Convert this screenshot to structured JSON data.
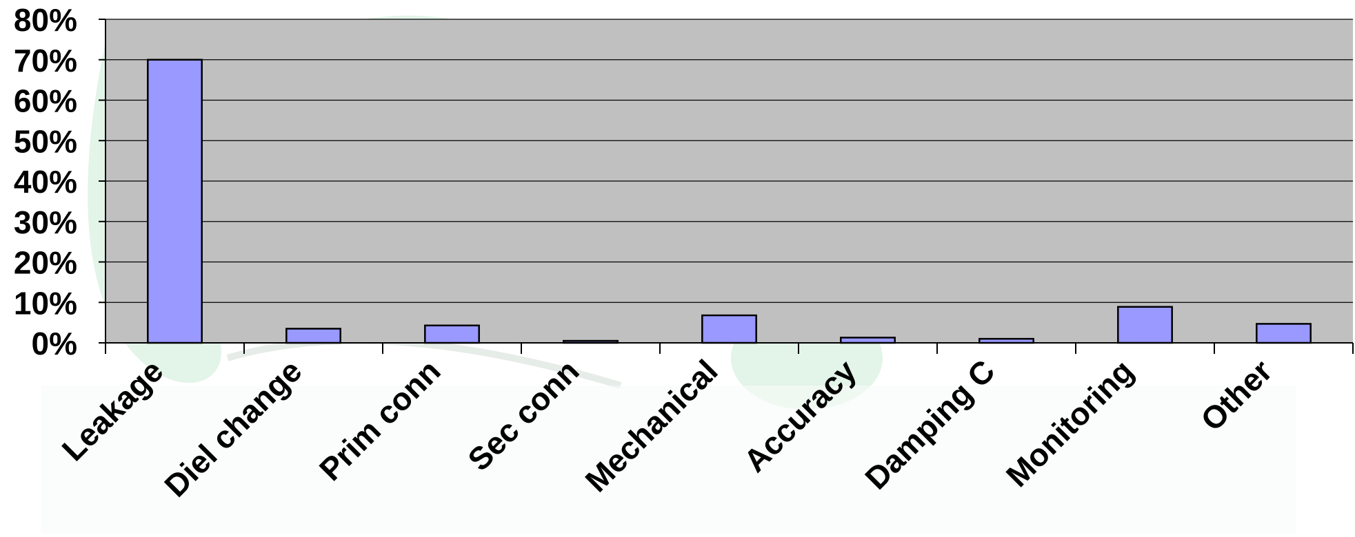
{
  "chart_data": {
    "type": "bar",
    "title": "",
    "xlabel": "",
    "ylabel": "",
    "categories": [
      "Leakage",
      "Diel change",
      "Prim conn",
      "Sec conn",
      "Mechanical",
      "Accuracy",
      "Damping C",
      "Monitoring",
      "Other"
    ],
    "values": [
      70,
      3.5,
      4.3,
      0.5,
      6.8,
      1.3,
      1.0,
      8.9,
      4.7
    ],
    "value_unit": "%",
    "ylim": [
      0,
      80
    ],
    "yticks": [
      "0%",
      "10%",
      "20%",
      "30%",
      "40%",
      "50%",
      "60%",
      "70%",
      "80%"
    ],
    "grid": true,
    "legend": "none",
    "colors": {
      "bar_fill": "#9999ff",
      "bar_stroke": "#000000",
      "plot_background": "#c0c0c0",
      "gridline": "#000000",
      "watermark": "#e3f4e8"
    }
  }
}
